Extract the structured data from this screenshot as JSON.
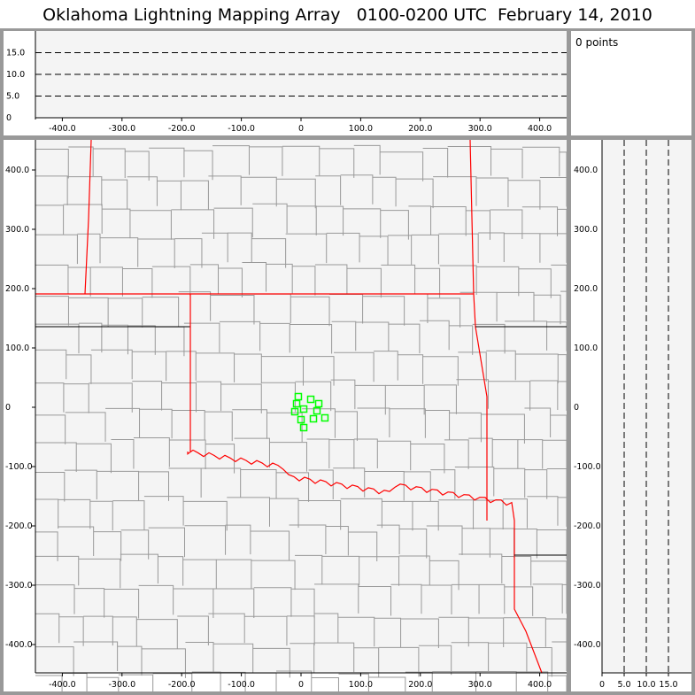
{
  "title": "Oklahoma Lightning Mapping Array   0100-0200 UTC  February 14, 2010",
  "info": {
    "points_label": "0 points"
  },
  "colors": {
    "state_border": "#ff0000",
    "county_line": "#999999",
    "source_marker": "#00ff00",
    "plot_bg": "#f4f4f4"
  },
  "top_panel": {
    "y_ticks": [
      "0",
      "5.0",
      "10.0",
      "15.0"
    ],
    "x_ticks": [
      "-400.0",
      "-300.0",
      "-200.0",
      "-100.0",
      "0",
      "100.0",
      "200.0",
      "300.0",
      "400.0"
    ],
    "dashed_levels": [
      5,
      10,
      15
    ]
  },
  "map_panel": {
    "x_ticks": [
      "-400.0",
      "-300.0",
      "-200.0",
      "-100.0",
      "0",
      "100.0",
      "200.0",
      "300.0",
      "400.0"
    ],
    "y_ticks": [
      "400.0",
      "300.0",
      "200.0",
      "100.0",
      "0",
      "-100.0",
      "-200.0",
      "-300.0",
      "-400.0"
    ],
    "sources": [
      [
        -4.5,
        17.9
      ],
      [
        -7.4,
        6
      ],
      [
        16.3,
        13.4
      ],
      [
        29.7,
        6
      ],
      [
        -10.4,
        -7.5
      ],
      [
        4.5,
        -3
      ],
      [
        26.7,
        -6
      ],
      [
        0,
        -20.9
      ],
      [
        20.8,
        -19.4
      ],
      [
        40,
        -17.9
      ],
      [
        4.5,
        -34.3
      ]
    ]
  },
  "side_panel": {
    "x_ticks": [
      "0",
      "5.0",
      "10.0",
      "15.0"
    ],
    "y_ticks": [
      "400.0",
      "300.0",
      "200.0",
      "100.0",
      "0",
      "-100.0",
      "-200.0",
      "-300.0",
      "-400.0"
    ],
    "dashed_levels": [
      5,
      10,
      15
    ]
  }
}
